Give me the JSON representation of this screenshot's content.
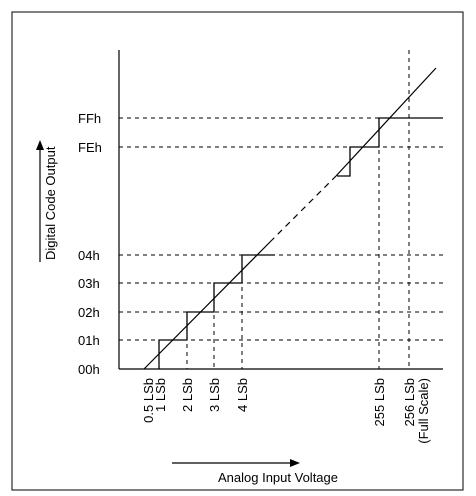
{
  "y_axis": {
    "title": "Digital Code Output",
    "codes": [
      "FFh",
      "FEh",
      "04h",
      "03h",
      "02h",
      "01h",
      "00h"
    ]
  },
  "x_axis": {
    "title": "Analog Input Voltage",
    "ticks": [
      "0.5 LSb",
      "1 LSb",
      "2 LSb",
      "3 LSb",
      "4 LSb",
      "255 LSb",
      "256 LSb"
    ],
    "extra_note": "(Full Scale)"
  }
}
